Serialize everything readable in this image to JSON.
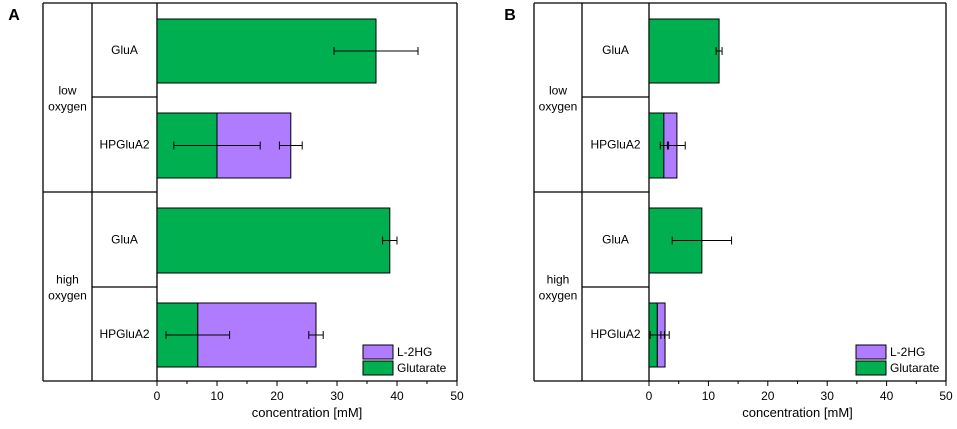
{
  "colors": {
    "glutarate": "#00b050",
    "l2hg": "#b07cff",
    "frame": "#000000"
  },
  "chart_data": [
    {
      "panel_label": "A",
      "type": "bar",
      "orientation": "horizontal",
      "stacked": true,
      "xlabel": "concentration [mM]",
      "xlim": [
        0,
        50
      ],
      "xticks": [
        "0",
        "10",
        "20",
        "30",
        "40",
        "50"
      ],
      "groups": [
        {
          "label_line1": "low",
          "label_line2": "oxygen",
          "categories": [
            "GluA",
            "HPGluA2"
          ]
        },
        {
          "label_line1": "high",
          "label_line2": "oxygen",
          "categories": [
            "GluA",
            "HPGluA2"
          ]
        }
      ],
      "legend": [
        {
          "key": "l2hg",
          "label": "L-2HG"
        },
        {
          "key": "glutarate",
          "label": "Glutarate"
        }
      ],
      "bars": [
        {
          "group": "low oxygen",
          "category": "GluA",
          "glutarate": 36.5,
          "glutarate_err": 7.0,
          "l2hg": 0,
          "l2hg_err": 0
        },
        {
          "group": "low oxygen",
          "category": "HPGluA2",
          "glutarate": 10.0,
          "glutarate_err": 7.2,
          "l2hg": 12.3,
          "l2hg_err": 1.9
        },
        {
          "group": "high oxygen",
          "category": "GluA",
          "glutarate": 38.8,
          "glutarate_err": 1.2,
          "l2hg": 0,
          "l2hg_err": 0
        },
        {
          "group": "high oxygen",
          "category": "HPGluA2",
          "glutarate": 6.8,
          "glutarate_err": 5.3,
          "l2hg": 19.7,
          "l2hg_err": 1.2
        }
      ]
    },
    {
      "panel_label": "B",
      "type": "bar",
      "orientation": "horizontal",
      "stacked": true,
      "xlabel": "concentration [mM]",
      "xlim": [
        0,
        50
      ],
      "xticks": [
        "0",
        "10",
        "20",
        "30",
        "40",
        "50"
      ],
      "groups": [
        {
          "label_line1": "low",
          "label_line2": "oxygen",
          "categories": [
            "GluA",
            "HPGluA2"
          ]
        },
        {
          "label_line1": "high",
          "label_line2": "oxygen",
          "categories": [
            "GluA",
            "HPGluA2"
          ]
        }
      ],
      "legend": [
        {
          "key": "l2hg",
          "label": "L-2HG"
        },
        {
          "key": "glutarate",
          "label": "Glutarate"
        }
      ],
      "bars": [
        {
          "group": "low oxygen",
          "category": "GluA",
          "glutarate": 11.8,
          "glutarate_err": 0.5,
          "l2hg": 0,
          "l2hg_err": 0
        },
        {
          "group": "low oxygen",
          "category": "HPGluA2",
          "glutarate": 2.5,
          "glutarate_err": 0.6,
          "l2hg": 2.2,
          "l2hg_err": 1.4
        },
        {
          "group": "high oxygen",
          "category": "GluA",
          "glutarate": 8.9,
          "glutarate_err": 5.0,
          "l2hg": 0,
          "l2hg_err": 0
        },
        {
          "group": "high oxygen",
          "category": "HPGluA2",
          "glutarate": 1.4,
          "glutarate_err": 1.2,
          "l2hg": 1.3,
          "l2hg_err": 0.7
        }
      ]
    }
  ]
}
